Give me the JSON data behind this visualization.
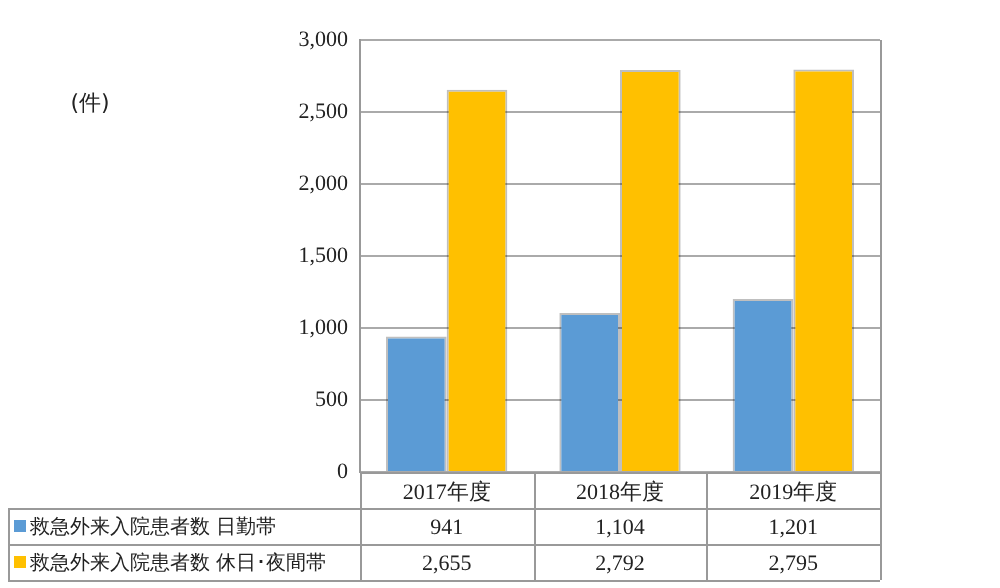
{
  "chart_data": {
    "type": "bar",
    "annotations": [
      "(件)"
    ],
    "categories": [
      "2017年度",
      "2018年度",
      "2019年度"
    ],
    "series": [
      {
        "name": "救急外来入院患者数 日勤帯",
        "color": "#5b9bd5",
        "values": [
          941,
          1104,
          1201
        ],
        "value_labels": [
          "941",
          "1,104",
          "1,201"
        ]
      },
      {
        "name": "救急外来入院患者数 休日･夜間帯",
        "color": "#ffc000",
        "values": [
          2655,
          2792,
          2795
        ],
        "value_labels": [
          "2,655",
          "2,792",
          "2,795"
        ]
      }
    ],
    "ylim": [
      0,
      3000
    ],
    "yticks": [
      0,
      500,
      {
        "value": 1000,
        "label": "1,000"
      },
      {
        "value": 1500,
        "label": "1,500"
      },
      {
        "value": 2000,
        "label": "2,000"
      },
      {
        "value": 2500,
        "label": "2,500"
      },
      {
        "value": 3000,
        "label": "3,000"
      }
    ],
    "grid": "y",
    "legend": "bottom"
  }
}
